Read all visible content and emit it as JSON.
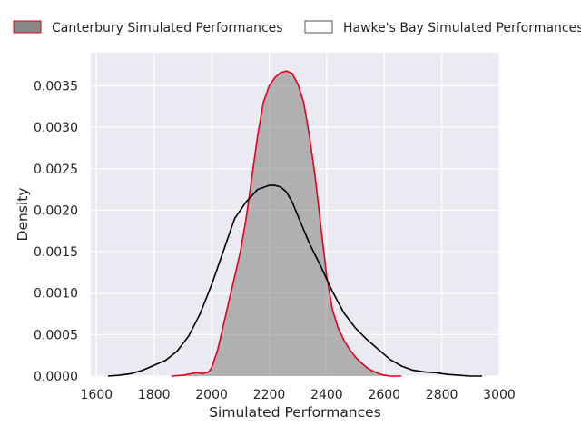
{
  "chart_data": {
    "type": "area",
    "title": "",
    "xlabel": "Simulated Performances",
    "ylabel": "Density",
    "xlim": [
      1580,
      3000
    ],
    "ylim": [
      0,
      0.0039
    ],
    "x_ticks": [
      1600,
      1800,
      2000,
      2200,
      2400,
      2600,
      2800,
      3000
    ],
    "y_ticks": [
      0.0,
      0.0005,
      0.001,
      0.0015,
      0.002,
      0.0025,
      0.003,
      0.0035
    ],
    "x_tick_labels": [
      "1600",
      "1800",
      "2000",
      "2200",
      "2400",
      "2600",
      "2800",
      "3000"
    ],
    "y_tick_labels": [
      "0.0000",
      "0.0005",
      "0.0010",
      "0.0015",
      "0.0020",
      "0.0025",
      "0.0030",
      "0.0035"
    ],
    "grid": true,
    "legend_position": "top",
    "series": [
      {
        "name": "Canterbury Simulated Performances",
        "fill_color": "#888888",
        "line_color": "#e8001a",
        "filled": true,
        "x": [
          1860,
          1900,
          1930,
          1950,
          1970,
          1990,
          2000,
          2020,
          2040,
          2060,
          2080,
          2100,
          2120,
          2140,
          2160,
          2180,
          2200,
          2220,
          2240,
          2260,
          2280,
          2300,
          2320,
          2340,
          2360,
          2380,
          2400,
          2420,
          2440,
          2460,
          2480,
          2500,
          2520,
          2540,
          2560,
          2580,
          2600,
          2620,
          2640,
          2660
        ],
        "y": [
          0.0,
          1e-05,
          3e-05,
          4e-05,
          3e-05,
          5e-05,
          0.0001,
          0.0003,
          0.0006,
          0.0009,
          0.0012,
          0.0015,
          0.0019,
          0.0024,
          0.0029,
          0.0033,
          0.0035,
          0.0036,
          0.00366,
          0.00368,
          0.00365,
          0.00352,
          0.0033,
          0.0029,
          0.0024,
          0.0018,
          0.0012,
          0.0008,
          0.00058,
          0.00043,
          0.00032,
          0.00023,
          0.00016,
          0.0001,
          6e-05,
          3e-05,
          1e-05,
          0.0,
          0.0,
          0.0
        ]
      },
      {
        "name": "Hawke's Bay Simulated Performances",
        "fill_color": "#ffffff",
        "line_color": "#000000",
        "filled": false,
        "x": [
          1640,
          1680,
          1720,
          1760,
          1800,
          1840,
          1880,
          1920,
          1960,
          2000,
          2040,
          2080,
          2120,
          2160,
          2200,
          2220,
          2240,
          2260,
          2280,
          2300,
          2340,
          2380,
          2420,
          2460,
          2500,
          2540,
          2580,
          2620,
          2660,
          2700,
          2740,
          2780,
          2820,
          2860,
          2900,
          2940
        ],
        "y": [
          0.0,
          1e-05,
          3e-05,
          7e-05,
          0.00013,
          0.00019,
          0.0003,
          0.00048,
          0.00075,
          0.0011,
          0.0015,
          0.0019,
          0.0021,
          0.00225,
          0.0023,
          0.0023,
          0.00228,
          0.00222,
          0.0021,
          0.00193,
          0.0016,
          0.00132,
          0.00102,
          0.00076,
          0.00058,
          0.00044,
          0.00032,
          0.0002,
          0.00012,
          7e-05,
          5e-05,
          4e-05,
          2e-05,
          1e-05,
          0.0,
          0.0
        ]
      }
    ]
  }
}
